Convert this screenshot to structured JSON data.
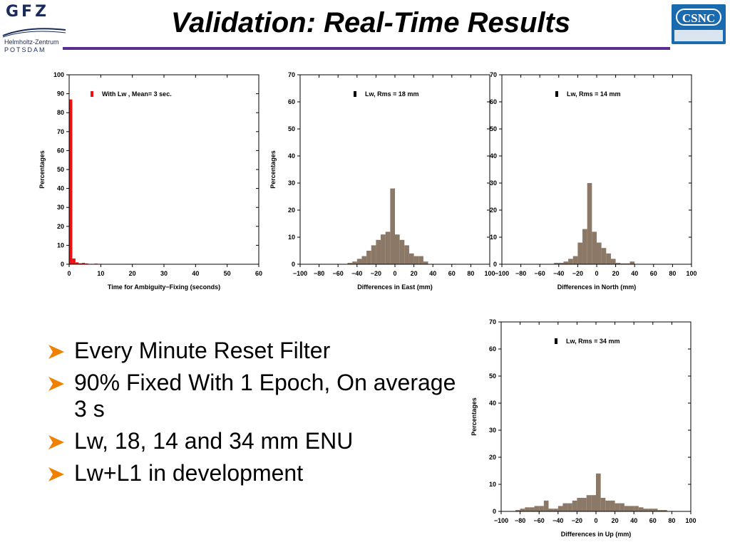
{
  "header": {
    "title": "Validation: Real-Time Results",
    "logo_left": {
      "name": "GFZ",
      "line1": "Helmholtz-Zentrum",
      "line2": "POTSDAM"
    },
    "logo_right": {
      "name": "CSNC"
    },
    "rule_color": "#5b2d8e"
  },
  "bullets": [
    "Every Minute Reset Filter",
    "90% Fixed With 1 Epoch, On average 3 s",
    "Lw,   18, 14 and 34 mm  ENU",
    "Lw+L1 in development"
  ],
  "bullet_icon": "arrow-bullet-icon",
  "bullet_color": "#f08000",
  "chart_data": [
    {
      "id": "ambiguity",
      "type": "bar",
      "xlabel": "Time for Ambiguity−Fixing (seconds)",
      "ylabel": "Percentages",
      "xlim": [
        0,
        60
      ],
      "ylim": [
        0,
        100
      ],
      "xticks": [
        0,
        10,
        20,
        30,
        40,
        50,
        60
      ],
      "yticks": [
        0,
        10,
        20,
        30,
        40,
        50,
        60,
        70,
        80,
        90,
        100
      ],
      "bin_width": 1,
      "color": "#ee1111",
      "legend": "With Lw , Mean= 3 sec.",
      "legend_position": "top-left",
      "x": [
        0,
        1,
        2,
        3,
        4,
        5,
        8,
        19,
        29
      ],
      "values": [
        87,
        3,
        1,
        0.5,
        0.7,
        0.4,
        0.3,
        0.2,
        0.2
      ]
    },
    {
      "id": "east",
      "type": "bar",
      "xlabel": "Differences in East (mm)",
      "ylabel": "Percentages",
      "xlim": [
        -100,
        100
      ],
      "ylim": [
        0,
        70
      ],
      "xticks": [
        -100,
        -80,
        -60,
        -40,
        -20,
        0,
        20,
        40,
        60,
        80,
        100
      ],
      "yticks": [
        0,
        10,
        20,
        30,
        40,
        50,
        60,
        70
      ],
      "bin_width": 5,
      "color": "#8b7866",
      "legend": "Lw, Rms = 18 mm",
      "legend_position": "top-left",
      "x": [
        -50,
        -45,
        -40,
        -35,
        -30,
        -25,
        -20,
        -15,
        -10,
        -5,
        0,
        5,
        10,
        15,
        20,
        25,
        30
      ],
      "values": [
        0.5,
        1,
        2,
        3,
        5,
        7,
        9,
        11,
        12,
        28,
        11,
        9,
        7,
        4,
        3,
        3,
        1
      ]
    },
    {
      "id": "north",
      "type": "bar",
      "xlabel": "Differences in North (mm)",
      "ylabel": "",
      "xlim": [
        -100,
        100
      ],
      "ylim": [
        0,
        70
      ],
      "xticks": [
        -100,
        -80,
        -60,
        -40,
        -20,
        0,
        20,
        40,
        60,
        80,
        100
      ],
      "yticks": [
        0,
        10,
        20,
        30,
        40,
        50,
        60,
        70
      ],
      "bin_width": 5,
      "color": "#8b7866",
      "legend": "Lw, Rms = 14 mm",
      "legend_position": "top-left",
      "x": [
        -45,
        -40,
        -35,
        -30,
        -25,
        -20,
        -15,
        -10,
        -5,
        0,
        5,
        10,
        15,
        20,
        25,
        30,
        35
      ],
      "values": [
        0.5,
        0.5,
        1,
        2,
        3,
        8,
        13,
        30,
        12,
        8,
        6,
        4,
        2,
        0.5,
        0.3,
        0.3,
        1
      ]
    },
    {
      "id": "up",
      "type": "bar",
      "xlabel": "Differences in Up (mm)",
      "ylabel": "Percentages",
      "xlim": [
        -100,
        100
      ],
      "ylim": [
        0,
        70
      ],
      "xticks": [
        -100,
        -80,
        -60,
        -40,
        -20,
        0,
        20,
        40,
        60,
        80,
        100
      ],
      "yticks": [
        0,
        10,
        20,
        30,
        40,
        50,
        60,
        70
      ],
      "bin_width": 5,
      "color": "#8b7866",
      "legend": "Lw, Rms = 34 mm",
      "legend_position": "top-left",
      "x": [
        -85,
        -80,
        -75,
        -70,
        -65,
        -60,
        -55,
        -50,
        -45,
        -40,
        -35,
        -30,
        -25,
        -20,
        -15,
        -10,
        -5,
        0,
        5,
        10,
        15,
        20,
        25,
        30,
        35,
        40,
        45,
        50,
        55,
        60,
        65,
        70
      ],
      "values": [
        0.5,
        1,
        1.5,
        1.5,
        2,
        2,
        4,
        1,
        1,
        2,
        3,
        3,
        4,
        5,
        5,
        6,
        6,
        14,
        5,
        4,
        4,
        3,
        3,
        2,
        2,
        2,
        1.5,
        1,
        1,
        1,
        0.5,
        0.5
      ]
    }
  ]
}
